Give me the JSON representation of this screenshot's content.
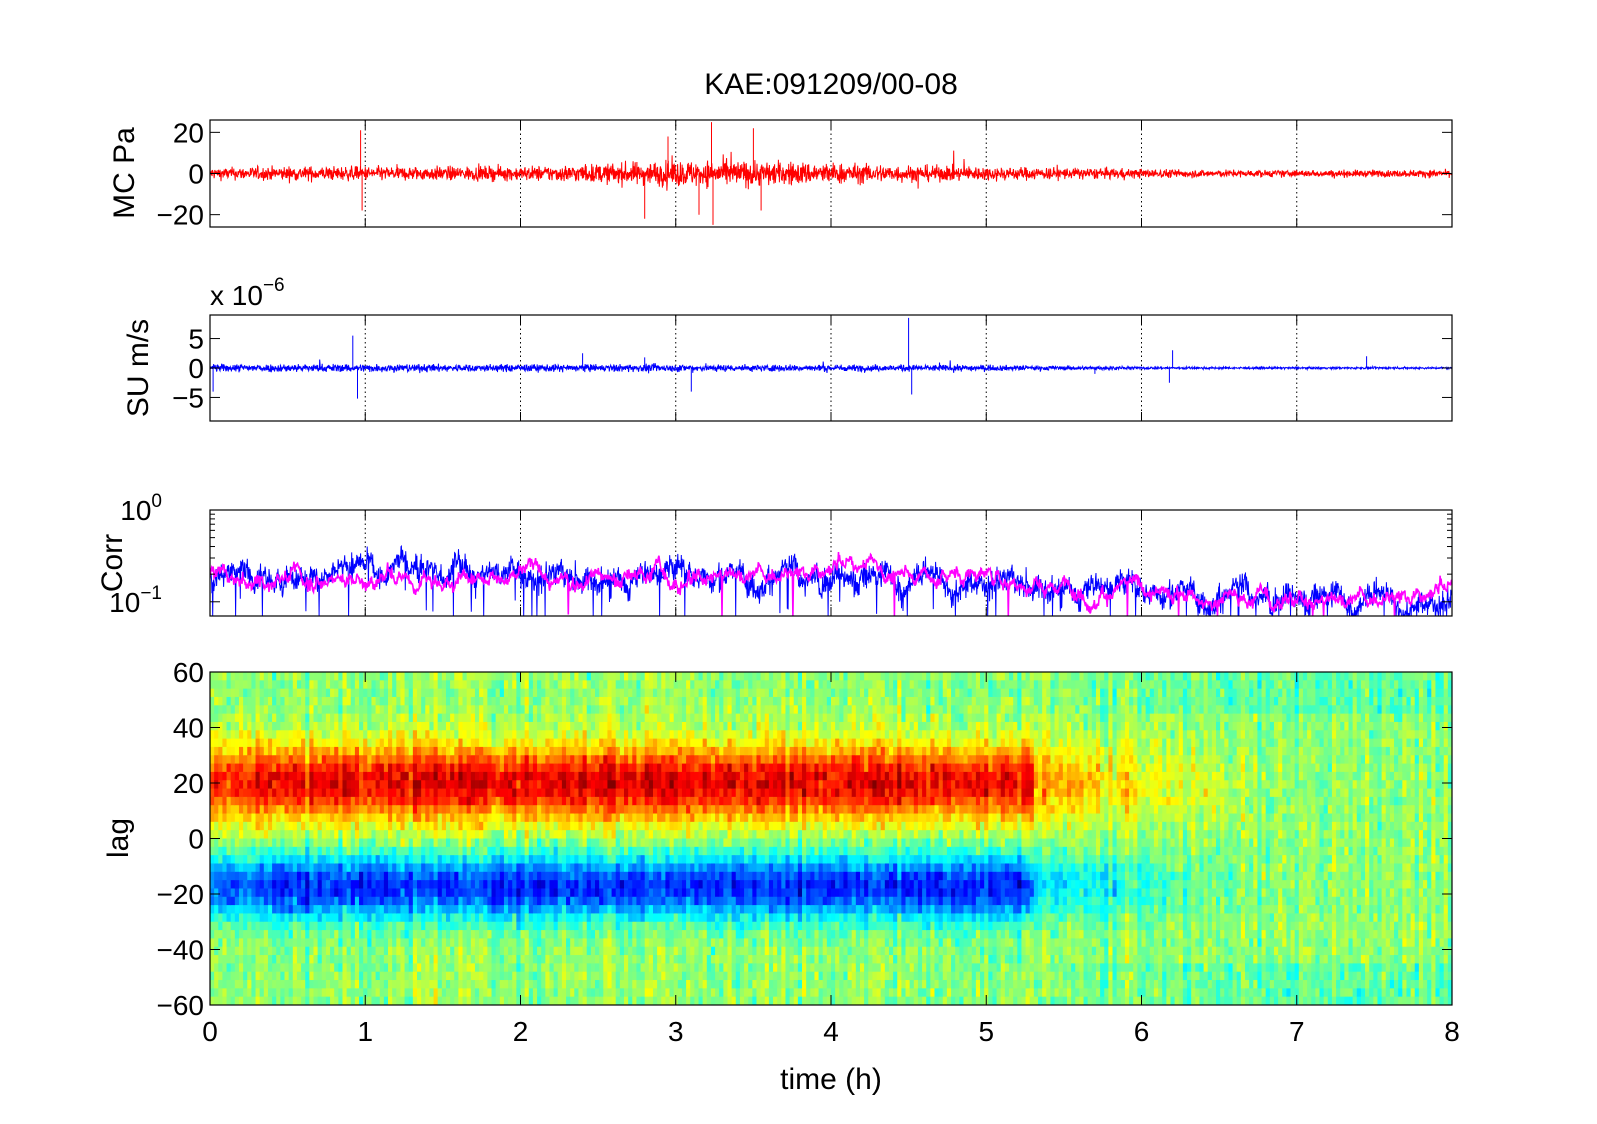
{
  "chart_data": [
    {
      "type": "line",
      "title": "KAE:091209/00-08",
      "ylabel": "MC Pa",
      "xlim": [
        0,
        8
      ],
      "ylim": [
        -26,
        26
      ],
      "yticks": [
        -20,
        0,
        20
      ],
      "ytick_labels": [
        "−20",
        "0",
        "20"
      ],
      "grid_x": true,
      "series": [
        {
          "color": "#ff0000",
          "envelope_x": [
            0,
            0.5,
            0.95,
            1.0,
            1.5,
            2.0,
            2.5,
            2.8,
            3.0,
            3.25,
            3.5,
            4.0,
            4.5,
            5.0,
            5.5,
            6.0,
            6.5,
            7.0,
            7.5,
            8.0
          ],
          "envelope_amplitude": [
            5,
            6,
            6,
            6,
            6,
            6,
            8,
            10,
            11,
            11,
            11,
            9,
            7,
            6,
            5,
            4,
            3,
            3,
            3,
            3
          ],
          "spikes": [
            [
              0.97,
              21
            ],
            [
              0.98,
              -18
            ],
            [
              2.8,
              -22
            ],
            [
              3.15,
              -20
            ],
            [
              3.23,
              25
            ],
            [
              3.24,
              -25
            ],
            [
              3.5,
              22
            ],
            [
              3.55,
              -18
            ],
            [
              2.95,
              18
            ]
          ]
        }
      ]
    },
    {
      "type": "line",
      "ylabel": "SU m/s",
      "scale_label": "x 10",
      "scale_exponent": "−6",
      "xlim": [
        0,
        8
      ],
      "ylim": [
        -9,
        9
      ],
      "yticks": [
        -5,
        0,
        5
      ],
      "ytick_labels": [
        "−5",
        "0",
        "5"
      ],
      "grid_x": true,
      "series": [
        {
          "color": "#0000ff",
          "envelope_x": [
            0,
            0.5,
            1.0,
            2.0,
            3.0,
            4.0,
            5.0,
            5.5,
            6.0,
            6.5,
            7.0,
            8.0
          ],
          "envelope_amplitude": [
            1.2,
            1.2,
            1.2,
            1.1,
            1.1,
            1.0,
            0.9,
            0.6,
            0.4,
            0.3,
            0.3,
            0.3
          ],
          "spikes": [
            [
              0.92,
              5.5
            ],
            [
              0.95,
              -5.2
            ],
            [
              2.4,
              2.5
            ],
            [
              3.1,
              -4
            ],
            [
              4.5,
              8.5
            ],
            [
              4.52,
              -4.5
            ],
            [
              6.2,
              3
            ],
            [
              6.18,
              -2.5
            ],
            [
              7.45,
              2
            ],
            [
              5.7,
              -1
            ],
            [
              2.8,
              1.8
            ],
            [
              0.02,
              -4
            ]
          ]
        }
      ]
    },
    {
      "type": "line",
      "ylabel": "Corr",
      "yscale": "log",
      "xlim": [
        0,
        8
      ],
      "ylim": [
        0.07,
        1
      ],
      "yticks": [
        0.1,
        1
      ],
      "ytick_base": "10",
      "ytick_exponents": [
        "−1",
        "0"
      ],
      "grid_x": true,
      "series": [
        {
          "color": "#0000ff",
          "level_x": [
            0,
            1,
            2,
            3,
            4,
            5,
            5.3,
            6,
            7,
            8
          ],
          "level": [
            0.2,
            0.22,
            0.22,
            0.21,
            0.2,
            0.2,
            0.18,
            0.14,
            0.12,
            0.12
          ]
        },
        {
          "color": "#ff00ff",
          "level_x": [
            0,
            1,
            2,
            3,
            4,
            5,
            5.3,
            6,
            7,
            8
          ],
          "level": [
            0.2,
            0.21,
            0.21,
            0.2,
            0.2,
            0.19,
            0.17,
            0.13,
            0.11,
            0.11
          ]
        }
      ]
    },
    {
      "type": "heatmap",
      "xlabel": "time (h)",
      "ylabel": "lag",
      "xlim": [
        0,
        8
      ],
      "ylim": [
        -60,
        60
      ],
      "xticks": [
        0,
        1,
        2,
        3,
        4,
        5,
        6,
        7,
        8
      ],
      "yticks": [
        -60,
        -40,
        -20,
        0,
        20,
        40,
        60
      ],
      "ytick_labels": [
        "−60",
        "−40",
        "−20",
        "0",
        "20",
        "40",
        "60"
      ],
      "colormap": "jet",
      "positive_band_lag": [
        5,
        35
      ],
      "negative_band_lag": [
        -30,
        -5
      ],
      "structure_fades_after_hours": 5.3,
      "structure_gone_after_hours": 6.8
    }
  ]
}
